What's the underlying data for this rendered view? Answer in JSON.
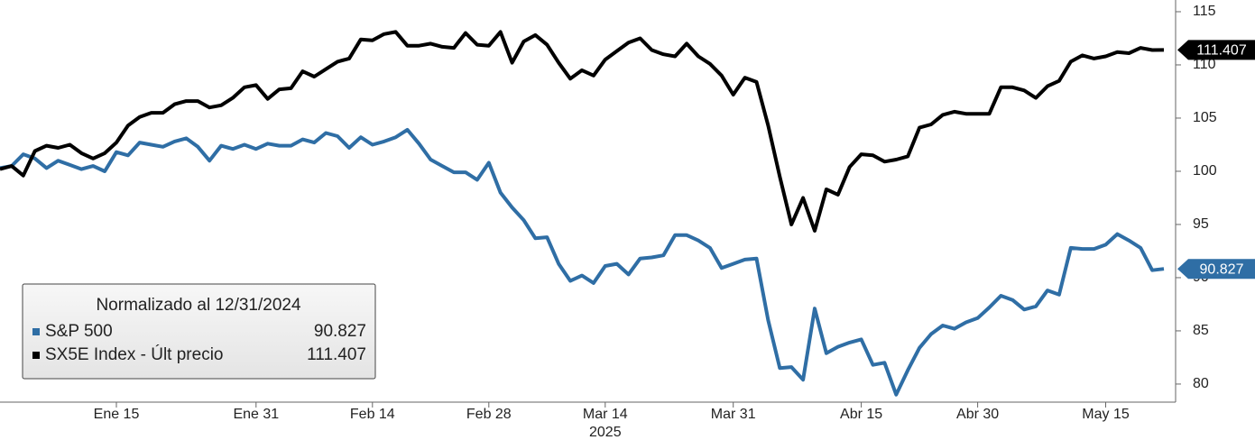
{
  "chart_data": {
    "type": "line",
    "legend_title": "Normalizado al 12/31/2024",
    "x_sublabel": "2025",
    "categories": [
      null,
      null,
      null,
      null,
      null,
      null,
      null,
      null,
      null,
      null,
      "Ene 15",
      null,
      null,
      null,
      null,
      null,
      null,
      null,
      null,
      null,
      null,
      null,
      "Ene 31",
      null,
      null,
      null,
      null,
      null,
      null,
      null,
      null,
      null,
      "Feb 14",
      null,
      null,
      null,
      null,
      null,
      null,
      null,
      null,
      null,
      "Feb 28",
      null,
      null,
      null,
      null,
      null,
      null,
      null,
      null,
      null,
      "Mar 14",
      null,
      null,
      null,
      null,
      null,
      null,
      null,
      null,
      null,
      null,
      "Mar 31",
      null,
      null,
      null,
      null,
      null,
      null,
      null,
      null,
      null,
      null,
      "Abr 15",
      null,
      null,
      null,
      null,
      null,
      null,
      null,
      null,
      null,
      "Abr 30",
      null,
      null,
      null,
      null,
      null,
      null,
      null,
      null,
      null,
      null,
      "May 15",
      null,
      null,
      null,
      null,
      null
    ],
    "series": [
      {
        "name": "S&P 500",
        "color": "#2f6ea5",
        "values": [
          100.3,
          100.5,
          101.6,
          101.2,
          100.3,
          101.0,
          100.6,
          100.2,
          100.5,
          100.0,
          101.8,
          101.5,
          102.7,
          102.5,
          102.3,
          102.8,
          103.1,
          102.3,
          101.0,
          102.4,
          102.1,
          102.5,
          102.1,
          102.6,
          102.4,
          102.4,
          103.0,
          102.7,
          103.6,
          103.3,
          102.2,
          103.2,
          102.5,
          102.8,
          103.2,
          103.9,
          102.6,
          101.1,
          100.5,
          99.9,
          99.9,
          99.2,
          100.8,
          98.0,
          96.6,
          95.4,
          93.7,
          93.8,
          91.3,
          89.7,
          90.2,
          89.5,
          91.1,
          91.3,
          90.3,
          91.8,
          91.9,
          92.1,
          94.0,
          94.0,
          93.5,
          92.8,
          90.9,
          91.3,
          91.7,
          91.8,
          86.0,
          81.5,
          81.6,
          80.4,
          87.1,
          82.9,
          83.5,
          83.9,
          84.2,
          81.8,
          82.0,
          79.0,
          81.3,
          83.4,
          84.7,
          85.5,
          85.2,
          85.8,
          86.2,
          87.2,
          88.3,
          87.9,
          87.0,
          87.3,
          88.8,
          88.4,
          92.8,
          92.7,
          92.7,
          93.1,
          94.1,
          93.5,
          92.8,
          90.7,
          90.827
        ]
      },
      {
        "name": "SX5E Index - Últ precio",
        "color": "#000000",
        "values": [
          100.2,
          100.5,
          99.6,
          101.9,
          102.4,
          102.2,
          102.5,
          101.7,
          101.2,
          101.7,
          102.7,
          104.3,
          105.1,
          105.5,
          105.5,
          106.3,
          106.6,
          106.6,
          106.0,
          106.2,
          106.9,
          107.9,
          108.1,
          106.8,
          107.7,
          107.8,
          109.4,
          108.9,
          109.6,
          110.3,
          110.6,
          112.4,
          112.3,
          112.9,
          113.1,
          111.8,
          111.8,
          112.0,
          111.7,
          111.6,
          113.0,
          111.9,
          111.8,
          113.1,
          110.2,
          112.2,
          112.8,
          111.9,
          110.2,
          108.7,
          109.5,
          109.0,
          110.5,
          111.3,
          112.1,
          112.5,
          111.4,
          111.0,
          110.8,
          112.0,
          110.8,
          110.1,
          109.0,
          107.2,
          108.8,
          108.4,
          104.3,
          99.5,
          95.0,
          97.5,
          94.4,
          98.3,
          97.8,
          100.4,
          101.6,
          101.5,
          100.9,
          101.1,
          101.4,
          104.1,
          104.4,
          105.3,
          105.6,
          105.4,
          105.4,
          105.4,
          107.9,
          107.9,
          107.6,
          106.9,
          108.0,
          108.5,
          110.3,
          110.9,
          110.6,
          110.8,
          111.2,
          111.1,
          111.6,
          111.4,
          111.407
        ]
      }
    ],
    "ylim": [
      78.3,
      116.1
    ],
    "yticks": [
      80,
      85,
      90,
      95,
      100,
      105,
      110,
      115
    ]
  }
}
